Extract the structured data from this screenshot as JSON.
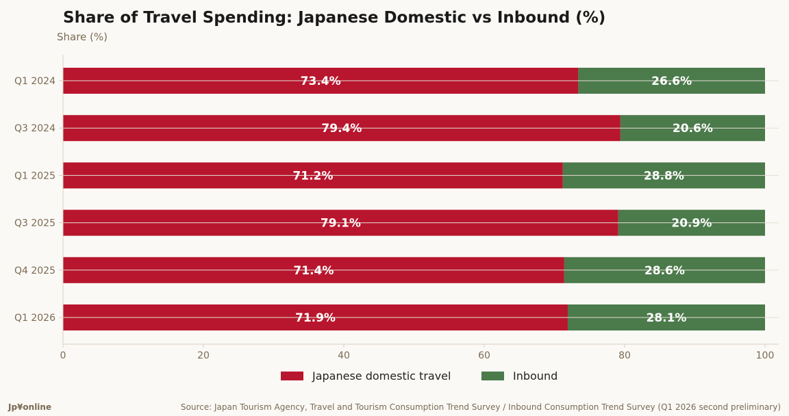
{
  "chart_data": {
    "type": "bar",
    "orientation": "horizontal",
    "stacked": true,
    "title": "Share of Travel Spending: Japanese Domestic vs Inbound (%)",
    "ylabel": "Share (%)",
    "categories": [
      "Q1 2024",
      "Q3 2024",
      "Q1 2025",
      "Q3 2025",
      "Q4 2025",
      "Q1 2026"
    ],
    "series": [
      {
        "name": "Japanese domestic travel",
        "color": "#b8162e",
        "values": [
          73.4,
          79.4,
          71.2,
          79.1,
          71.4,
          71.9
        ]
      },
      {
        "name": "Inbound",
        "color": "#4b7a4b",
        "values": [
          26.6,
          20.6,
          28.8,
          20.9,
          28.6,
          28.1
        ]
      }
    ],
    "xlim": [
      0,
      100
    ],
    "xticks": [
      0,
      20,
      40,
      60,
      80,
      100
    ],
    "grid": true,
    "legend_position": "bottom-center",
    "value_suffix": "%"
  },
  "footer": {
    "brand": "Jp¥online",
    "source": "Source: Japan Tourism Agency, Travel and Tourism Consumption Trend Survey / Inbound Consumption Trend Survey (Q1 2026 second preliminary)"
  }
}
